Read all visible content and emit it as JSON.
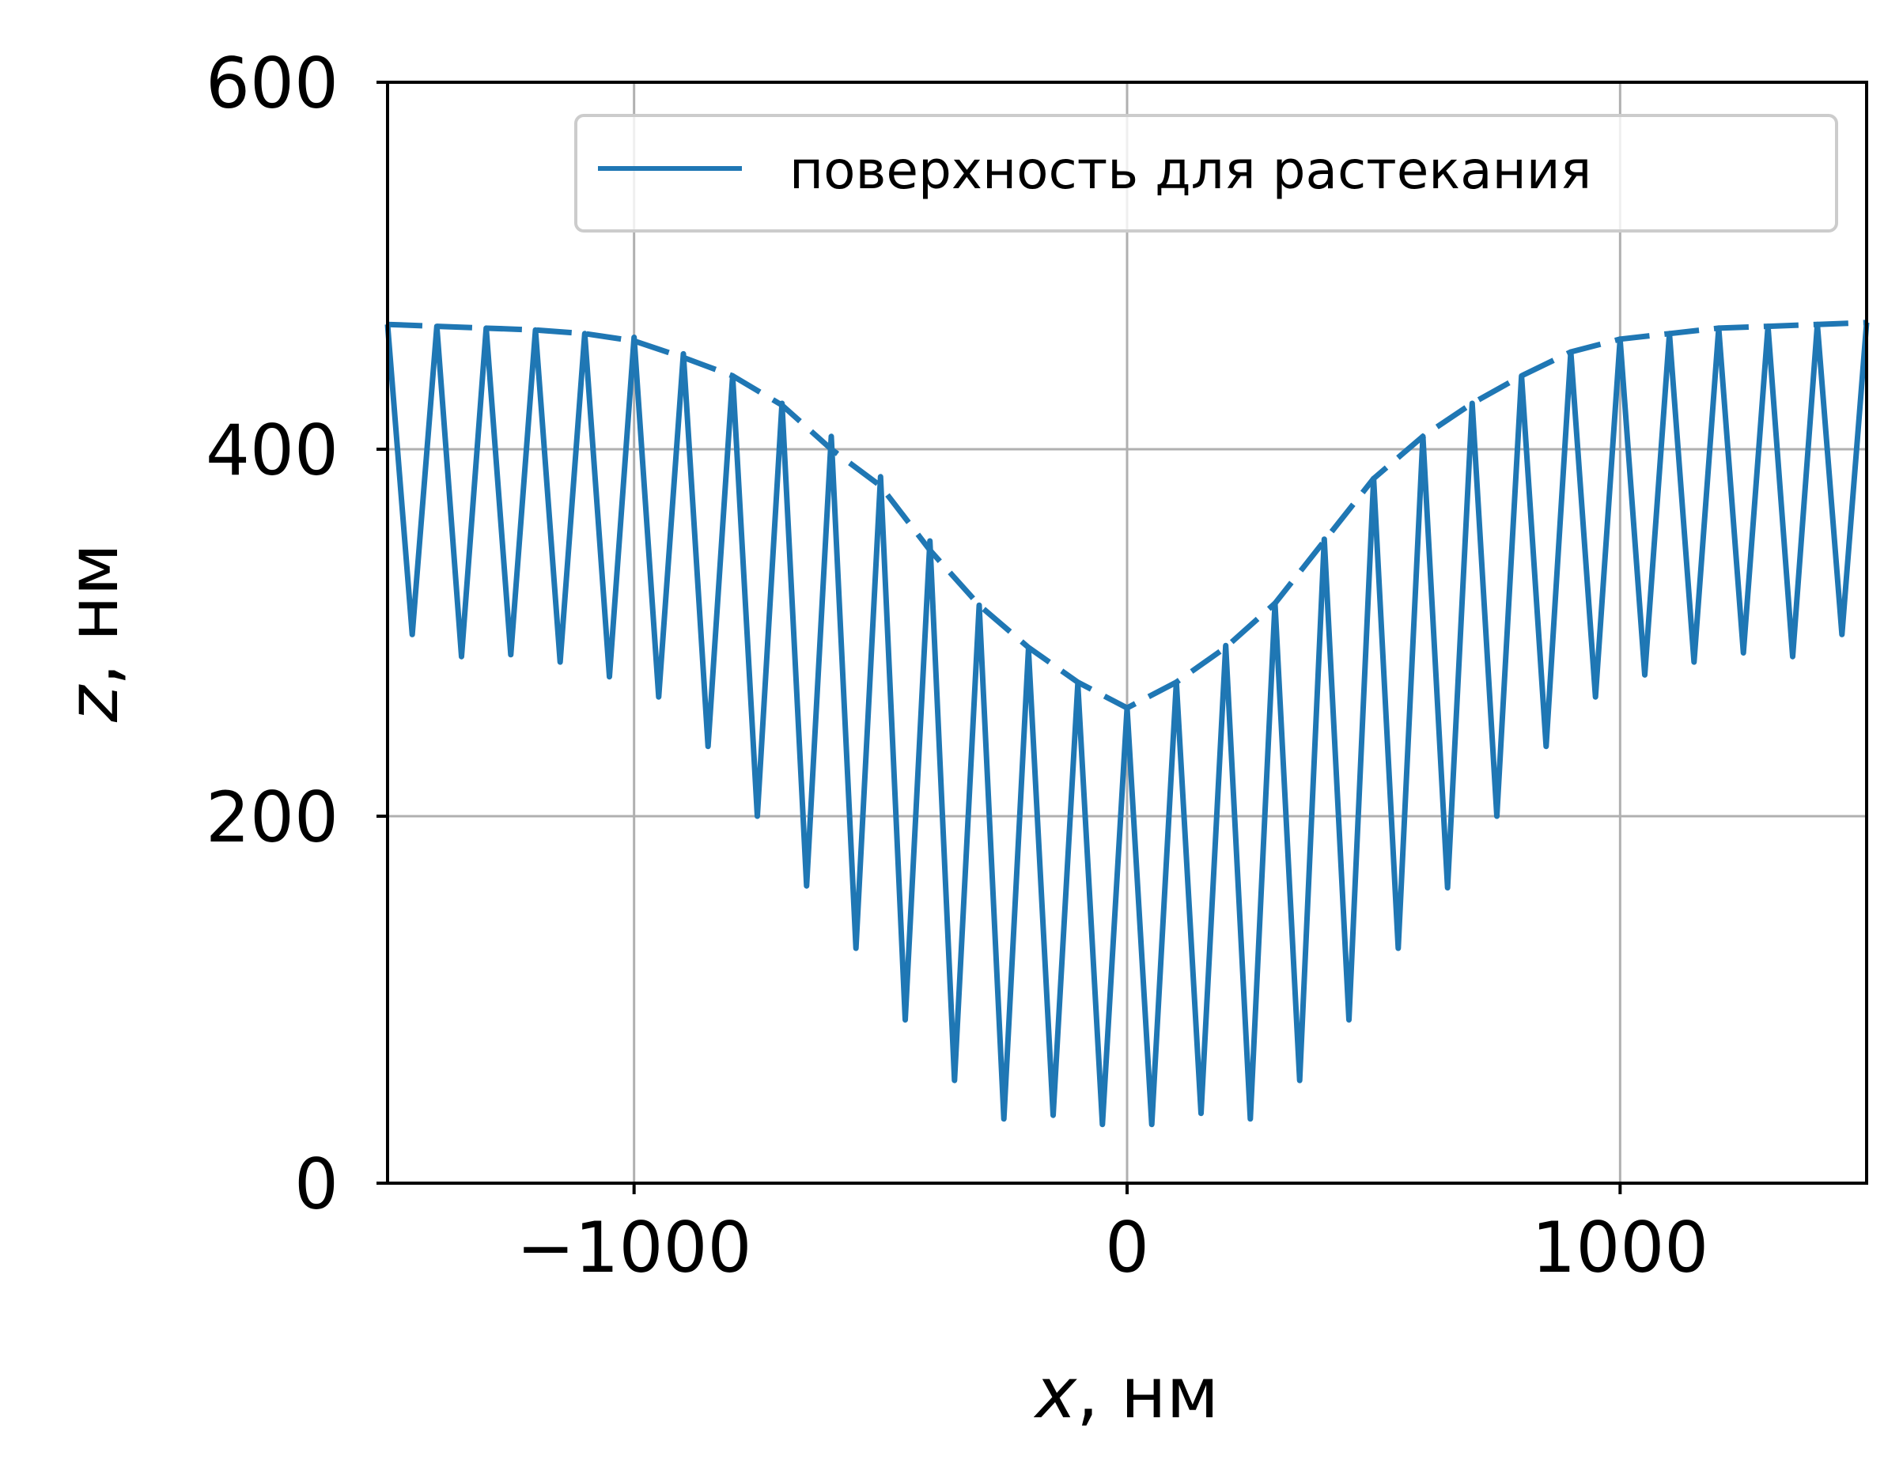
{
  "chart_data": {
    "type": "line",
    "xlabel": "x, нм",
    "xlabel_var": "x",
    "xlabel_unit": ", нм",
    "ylabel": "z, нм",
    "ylabel_var": "z",
    "ylabel_unit": ", нм",
    "xlim": [
      -1500,
      1500
    ],
    "ylim": [
      0,
      600
    ],
    "xticks": [
      -1000,
      0,
      1000
    ],
    "xtick_labels": [
      "−1000",
      "0",
      "1000"
    ],
    "yticks": [
      0,
      200,
      400,
      600
    ],
    "ytick_labels": [
      "0",
      "200",
      "400",
      "600"
    ],
    "grid": true,
    "legend": {
      "position": "top-right",
      "entries": [
        "поверхность для растекания"
      ]
    },
    "color": "#1f77b4",
    "series": [
      {
        "name": "поверхность для растекания",
        "style": "solid",
        "x": [
          -1500,
          -1450,
          -1400,
          -1350,
          -1300,
          -1250,
          -1200,
          -1150,
          -1100,
          -1050,
          -1000,
          -950,
          -900,
          -850,
          -800,
          -750,
          -700,
          -650,
          -600,
          -550,
          -500,
          -450,
          -400,
          -350,
          -300,
          -250,
          -200,
          -150,
          -100,
          -50,
          0,
          50,
          100,
          150,
          200,
          250,
          300,
          350,
          400,
          450,
          500,
          550,
          600,
          650,
          700,
          750,
          800,
          850,
          900,
          950,
          1000,
          1050,
          1100,
          1150,
          1200,
          1250,
          1300,
          1350,
          1400,
          1450,
          1500
        ],
        "y": [
          468,
          299,
          467,
          287,
          466,
          288,
          465,
          284,
          463,
          276,
          461,
          265,
          452,
          238,
          440,
          200,
          425,
          162,
          407,
          128,
          385,
          89,
          350,
          56,
          315,
          35,
          291,
          37,
          272,
          32,
          259,
          32,
          273,
          38,
          293,
          35,
          316,
          56,
          351,
          89,
          384,
          128,
          407,
          161,
          425,
          200,
          440,
          238,
          453,
          265,
          460,
          277,
          463,
          284,
          466,
          289,
          467,
          287,
          468,
          299,
          469
        ]
      },
      {
        "style": "dashed",
        "x": [
          -1500,
          -1400,
          -1300,
          -1200,
          -1100,
          -1000,
          -900,
          -800,
          -700,
          -600,
          -500,
          -400,
          -300,
          -200,
          -100,
          0,
          100,
          200,
          300,
          400,
          500,
          600,
          700,
          800,
          900,
          1000,
          1100,
          1200,
          1300,
          1400,
          1500
        ],
        "y": [
          468,
          467,
          466,
          465,
          463,
          459,
          450,
          440,
          424,
          400,
          380,
          345,
          315,
          292,
          273,
          259,
          273,
          292,
          316,
          350,
          384,
          407,
          425,
          440,
          453,
          460,
          463,
          466,
          467,
          468,
          469
        ]
      }
    ]
  }
}
